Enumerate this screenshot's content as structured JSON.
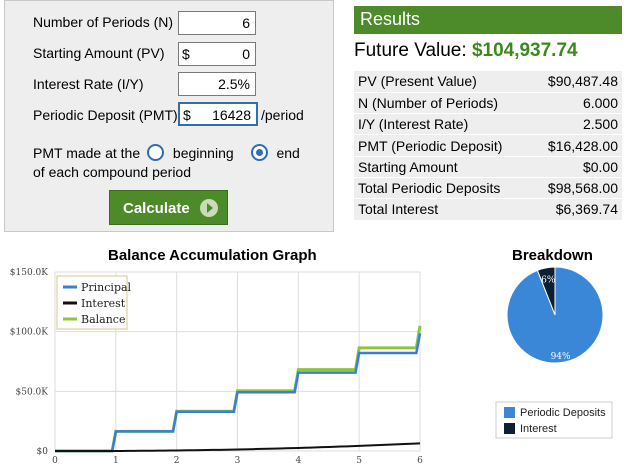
{
  "form": {
    "periods": {
      "label": "Number of Periods (N)",
      "value": "6"
    },
    "starting_amount": {
      "label": "Starting Amount (PV)",
      "prefix": "$",
      "value": "0"
    },
    "interest_rate": {
      "label": "Interest Rate (I/Y)",
      "value": "2.5%"
    },
    "periodic_deposit": {
      "label": "Periodic Deposit (PMT)",
      "prefix": "$",
      "value": "16428",
      "suffix": "/period"
    },
    "pmt_timing": {
      "prefix": "PMT made at the",
      "beginning": "beginning",
      "end": "end",
      "selected": "end",
      "suffix": "of each compound period"
    },
    "calculate_label": "Calculate"
  },
  "results": {
    "header": "Results",
    "future_value_label": "Future Value:",
    "future_value": "$104,937.74",
    "rows": [
      {
        "label": "PV (Present Value)",
        "value": "$90,487.48"
      },
      {
        "label": "N (Number of Periods)",
        "value": "6.000"
      },
      {
        "label": "I/Y (Interest Rate)",
        "value": "2.500"
      },
      {
        "label": "PMT (Periodic Deposit)",
        "value": "$16,428.00"
      },
      {
        "label": "Starting Amount",
        "value": "$0.00"
      },
      {
        "label": "Total Periodic Deposits",
        "value": "$98,568.00"
      },
      {
        "label": "Total Interest",
        "value": "$6,369.74"
      }
    ]
  },
  "chart_data": [
    {
      "type": "line",
      "title": "Balance Accumulation Graph",
      "x": [
        0,
        1,
        2,
        3,
        4,
        5,
        6
      ],
      "ylim": [
        0,
        150000
      ],
      "yticks": [
        "$0",
        "$50.0K",
        "$100.0K",
        "$150.0K"
      ],
      "xticks": [
        "0",
        "1",
        "2",
        "3",
        "4",
        "5",
        "6"
      ],
      "grid": true,
      "legend": "top-left",
      "series": [
        {
          "name": "Principal",
          "color": "#3a7fd5",
          "values": [
            0,
            16428,
            32856,
            49284,
            65712,
            82140,
            98568
          ]
        },
        {
          "name": "Interest",
          "color": "#111111",
          "values": [
            0,
            0,
            411,
            1243,
            2517,
            4253,
            6370
          ]
        },
        {
          "name": "Balance",
          "color": "#8cc63f",
          "values": [
            0,
            16428,
            33267,
            50527,
            68229,
            86393,
            104938
          ]
        }
      ]
    },
    {
      "type": "pie",
      "title": "Breakdown",
      "categories": [
        "Periodic Deposits",
        "Interest"
      ],
      "values": [
        94,
        6
      ],
      "labels": [
        "94%",
        "6%"
      ],
      "colors": [
        "#3a87d8",
        "#0e1e33"
      ],
      "legend": "bottom"
    }
  ]
}
